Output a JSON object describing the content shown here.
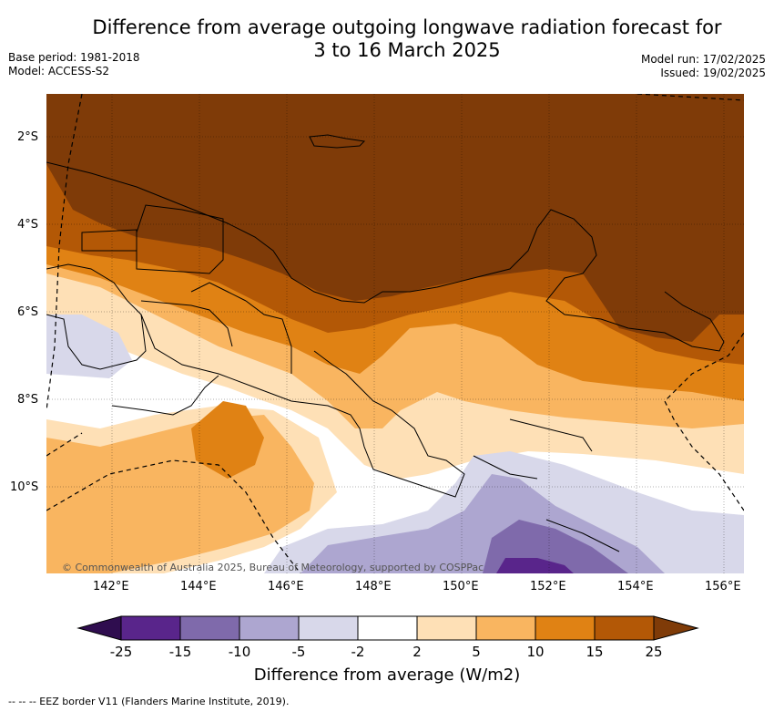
{
  "title_line1": "Difference from average outgoing longwave radiation forecast for",
  "title_line2": "3 to 16 March 2025",
  "base_period": "Base period: 1981-2018",
  "model": "Model: ACCESS-S2",
  "model_run": "Model run: 17/02/2025",
  "issued": "Issued: 19/02/2025",
  "lat_ticks": [
    "2°S",
    "4°S",
    "6°S",
    "8°S",
    "10°S"
  ],
  "lon_ticks": [
    "142°E",
    "144°E",
    "146°E",
    "148°E",
    "150°E",
    "152°E",
    "154°E",
    "156°E"
  ],
  "copyright": "© Commonwealth of Australia 2025, Bureau of Meteorology, supported by COSPPac",
  "colorbar": {
    "labels": [
      "-25",
      "-15",
      "-10",
      "-5",
      "-2",
      "2",
      "5",
      "10",
      "15",
      "25"
    ],
    "colors": [
      "#2f0d4f",
      "#59258b",
      "#7f6aab",
      "#ada6d0",
      "#d8d8ea",
      "#ffffff",
      "#fee0b6",
      "#f9b560",
      "#e08214",
      "#b35806",
      "#7f3b08"
    ],
    "title": "Difference from average (W/m2)"
  },
  "footer": "--  --  -- EEZ border V11 (Flanders Marine Institute, 2019)."
}
